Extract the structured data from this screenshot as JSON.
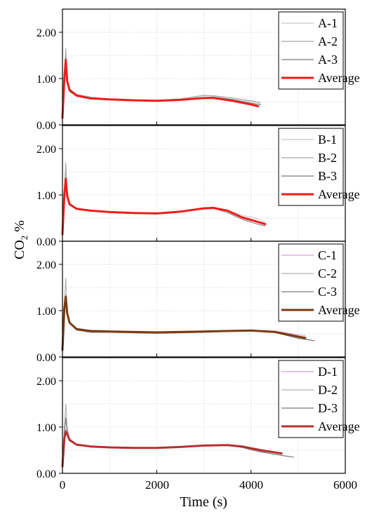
{
  "chart_data": [
    {
      "panel": "A",
      "type": "line",
      "xlim": [
        0,
        6000
      ],
      "ylim": [
        0,
        2.5
      ],
      "yticks": [
        "0.00",
        "1.00",
        "2.00"
      ],
      "grid": true,
      "legend_position": "top-right",
      "series": [
        {
          "name": "A-1",
          "color": "#c8c8c8",
          "x": [
            0,
            40,
            70,
            100,
            150,
            300,
            600,
            1000,
            1500,
            2000,
            2500,
            3000,
            3200,
            3600,
            4000,
            4200
          ],
          "y": [
            0.15,
            1.0,
            1.55,
            0.95,
            0.75,
            0.64,
            0.58,
            0.55,
            0.53,
            0.52,
            0.55,
            0.63,
            0.62,
            0.58,
            0.5,
            0.45
          ]
        },
        {
          "name": "A-2",
          "color": "#a8a8a8",
          "x": [
            0,
            40,
            70,
            100,
            150,
            300,
            600,
            1000,
            1500,
            2000,
            2500,
            3000,
            3200,
            3600,
            4000,
            4200
          ],
          "y": [
            0.15,
            1.1,
            1.65,
            1.0,
            0.78,
            0.66,
            0.6,
            0.56,
            0.54,
            0.53,
            0.56,
            0.64,
            0.63,
            0.58,
            0.52,
            0.48
          ]
        },
        {
          "name": "A-3",
          "color": "#7a7a7a",
          "x": [
            0,
            40,
            70,
            100,
            150,
            300,
            600,
            1000,
            1500,
            2000,
            2500,
            3000,
            3200,
            3600,
            4000,
            4200
          ],
          "y": [
            0.15,
            0.9,
            1.45,
            0.9,
            0.72,
            0.62,
            0.57,
            0.54,
            0.52,
            0.51,
            0.53,
            0.59,
            0.6,
            0.55,
            0.47,
            0.43
          ]
        },
        {
          "name": "Average",
          "color": "#ee1c1c",
          "x": [
            0,
            40,
            70,
            100,
            150,
            300,
            600,
            1000,
            1500,
            2000,
            2500,
            3000,
            3200,
            3600,
            4000,
            4150
          ],
          "y": [
            0.15,
            1.0,
            1.4,
            0.95,
            0.75,
            0.63,
            0.57,
            0.55,
            0.53,
            0.52,
            0.54,
            0.58,
            0.58,
            0.52,
            0.44,
            0.4
          ]
        }
      ]
    },
    {
      "panel": "B",
      "type": "line",
      "xlim": [
        0,
        6000
      ],
      "ylim": [
        0,
        2.5
      ],
      "yticks": [
        "0.00",
        "1.00",
        "2.00"
      ],
      "grid": true,
      "legend_position": "top-right",
      "series": [
        {
          "name": "B-1",
          "color": "#c8c8c8",
          "x": [
            0,
            40,
            70,
            100,
            150,
            300,
            600,
            1000,
            1500,
            2000,
            2500,
            3000,
            3200,
            3500,
            3800,
            4100,
            4300
          ],
          "y": [
            0.15,
            1.05,
            1.5,
            1.0,
            0.8,
            0.7,
            0.66,
            0.63,
            0.61,
            0.6,
            0.64,
            0.7,
            0.72,
            0.67,
            0.56,
            0.5,
            0.42
          ]
        },
        {
          "name": "B-2",
          "color": "#a8a8a8",
          "x": [
            0,
            40,
            70,
            100,
            150,
            300,
            600,
            1000,
            1500,
            2000,
            2500,
            3000,
            3200,
            3500,
            3800,
            4100,
            4300
          ],
          "y": [
            0.15,
            1.1,
            1.7,
            1.05,
            0.82,
            0.71,
            0.67,
            0.64,
            0.62,
            0.61,
            0.65,
            0.72,
            0.74,
            0.66,
            0.52,
            0.42,
            0.36
          ]
        },
        {
          "name": "B-3",
          "color": "#7a7a7a",
          "x": [
            0,
            40,
            70,
            100,
            150,
            300,
            600,
            1000,
            1500,
            2000,
            2500,
            3000,
            3200,
            3500,
            3800,
            4100,
            4300
          ],
          "y": [
            0.15,
            0.95,
            1.3,
            0.95,
            0.78,
            0.69,
            0.65,
            0.62,
            0.6,
            0.59,
            0.63,
            0.7,
            0.71,
            0.62,
            0.48,
            0.38,
            0.33
          ]
        },
        {
          "name": "Average",
          "color": "#ee1c1c",
          "x": [
            0,
            40,
            70,
            100,
            150,
            300,
            600,
            1000,
            1500,
            2000,
            2500,
            3000,
            3200,
            3500,
            3800,
            4100,
            4300
          ],
          "y": [
            0.15,
            1.0,
            1.35,
            0.98,
            0.8,
            0.7,
            0.66,
            0.63,
            0.61,
            0.6,
            0.64,
            0.71,
            0.72,
            0.66,
            0.52,
            0.43,
            0.37
          ]
        }
      ]
    },
    {
      "panel": "C",
      "type": "line",
      "xlim": [
        0,
        6000
      ],
      "ylim": [
        0,
        2.5
      ],
      "yticks": [
        "0.00",
        "1.00",
        "2.00"
      ],
      "grid": true,
      "legend_position": "top-right",
      "series": [
        {
          "name": "C-1",
          "color": "#d9a0d9",
          "x": [
            0,
            40,
            70,
            100,
            150,
            300,
            600,
            1000,
            1500,
            2000,
            2500,
            3000,
            3500,
            4000,
            4500,
            5000,
            5150
          ],
          "y": [
            0.15,
            1.1,
            1.35,
            0.95,
            0.75,
            0.62,
            0.57,
            0.56,
            0.55,
            0.54,
            0.55,
            0.56,
            0.57,
            0.58,
            0.56,
            0.48,
            0.46
          ]
        },
        {
          "name": "C-2",
          "color": "#b0b0b0",
          "x": [
            0,
            40,
            70,
            100,
            150,
            300,
            600,
            1000,
            1500,
            2000,
            2500,
            3000,
            3500,
            4000,
            4500,
            5000,
            5300
          ],
          "y": [
            0.15,
            1.2,
            1.7,
            1.0,
            0.75,
            0.6,
            0.55,
            0.54,
            0.53,
            0.52,
            0.53,
            0.54,
            0.56,
            0.57,
            0.55,
            0.42,
            0.36
          ]
        },
        {
          "name": "C-3",
          "color": "#7a7a7a",
          "x": [
            0,
            40,
            70,
            100,
            150,
            300,
            600,
            1000,
            1500,
            2000,
            2500,
            3000,
            3500,
            4000,
            4500,
            5000,
            5350
          ],
          "y": [
            0.15,
            0.95,
            1.2,
            0.9,
            0.72,
            0.58,
            0.53,
            0.53,
            0.52,
            0.51,
            0.52,
            0.53,
            0.55,
            0.56,
            0.53,
            0.4,
            0.35
          ]
        },
        {
          "name": "Average",
          "color": "#7a3b10",
          "x": [
            0,
            40,
            70,
            100,
            150,
            300,
            600,
            1000,
            1500,
            2000,
            2500,
            3000,
            3500,
            4000,
            4500,
            5000,
            5150
          ],
          "y": [
            0.15,
            1.05,
            1.3,
            0.95,
            0.74,
            0.6,
            0.56,
            0.55,
            0.54,
            0.53,
            0.54,
            0.55,
            0.56,
            0.57,
            0.54,
            0.44,
            0.41
          ]
        }
      ]
    },
    {
      "panel": "D",
      "type": "line",
      "xlim": [
        0,
        6000
      ],
      "ylim": [
        0,
        2.5
      ],
      "yticks": [
        "0.00",
        "1.00",
        "2.00"
      ],
      "grid": true,
      "legend_position": "top-right",
      "series": [
        {
          "name": "D-1",
          "color": "#d9a0d9",
          "x": [
            0,
            40,
            70,
            100,
            150,
            300,
            600,
            1000,
            1500,
            2000,
            2500,
            3000,
            3500,
            3800,
            4200,
            4600
          ],
          "y": [
            0.15,
            0.75,
            0.95,
            0.85,
            0.72,
            0.62,
            0.58,
            0.57,
            0.55,
            0.56,
            0.58,
            0.6,
            0.62,
            0.6,
            0.52,
            0.45
          ]
        },
        {
          "name": "D-2",
          "color": "#b0b0b0",
          "x": [
            0,
            40,
            70,
            100,
            150,
            300,
            600,
            1000,
            1500,
            2000,
            2500,
            3000,
            3500,
            3800,
            4200,
            4800
          ],
          "y": [
            0.15,
            1.0,
            1.5,
            1.0,
            0.75,
            0.63,
            0.58,
            0.56,
            0.54,
            0.55,
            0.57,
            0.6,
            0.61,
            0.57,
            0.47,
            0.36
          ]
        },
        {
          "name": "D-3",
          "color": "#7a7a7a",
          "x": [
            0,
            40,
            70,
            100,
            150,
            300,
            600,
            1000,
            1500,
            2000,
            2500,
            3000,
            3500,
            3800,
            4200,
            4900
          ],
          "y": [
            0.15,
            0.85,
            1.2,
            0.9,
            0.72,
            0.61,
            0.57,
            0.55,
            0.54,
            0.55,
            0.57,
            0.6,
            0.61,
            0.56,
            0.46,
            0.35
          ]
        },
        {
          "name": "Average",
          "color": "#b5302f",
          "x": [
            0,
            40,
            70,
            100,
            150,
            300,
            600,
            1000,
            1500,
            2000,
            2500,
            3000,
            3500,
            3800,
            4200,
            4650
          ],
          "y": [
            0.15,
            0.75,
            0.9,
            0.85,
            0.72,
            0.62,
            0.58,
            0.56,
            0.55,
            0.55,
            0.57,
            0.6,
            0.61,
            0.58,
            0.5,
            0.43
          ]
        }
      ]
    }
  ],
  "axes": {
    "xlabel": "Time (s)",
    "ylabel_main": "CO",
    "ylabel_sub": "2",
    "ylabel_unit": " %",
    "xticks": [
      "0",
      "2000",
      "4000",
      "6000"
    ],
    "xtick_values": [
      0,
      2000,
      4000,
      6000
    ]
  }
}
